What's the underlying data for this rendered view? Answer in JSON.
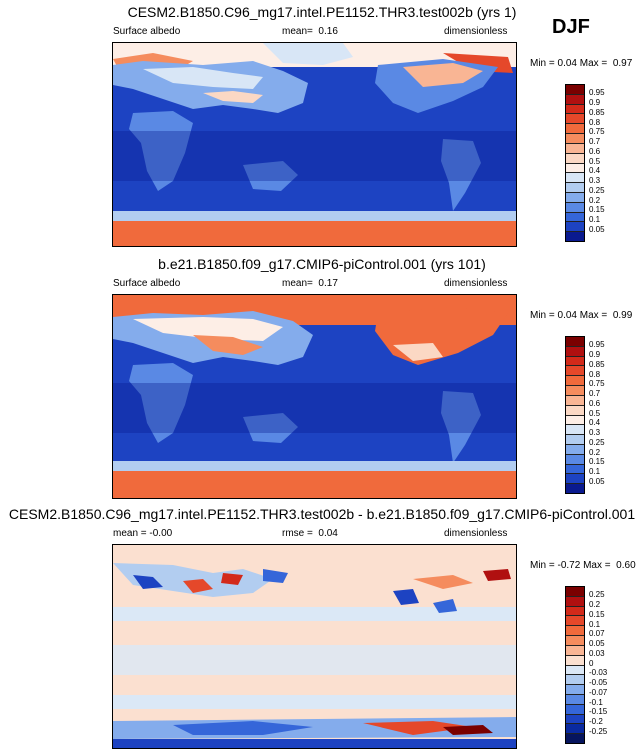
{
  "season": "DJF",
  "panels": [
    {
      "title": "CESM2.B1850.C96_mg17.intel.PE1152.THR3.test002b (yrs 1)",
      "left": "Surface albedo",
      "mid_label": "mean=",
      "mid_value": "0.16",
      "right": "dimensionless",
      "min_label": "Min =",
      "min_value": "0.04",
      "max_label": "Max =",
      "max_value": "0.97",
      "levels": [
        "0.95",
        "0.9",
        "0.85",
        "0.8",
        "0.75",
        "0.7",
        "0.6",
        "0.5",
        "0.4",
        "0.3",
        "0.25",
        "0.2",
        "0.15",
        "0.1",
        "0.05"
      ],
      "colors": [
        "#7a0000",
        "#b01010",
        "#d32a1a",
        "#e5482a",
        "#f06a3c",
        "#f58c5e",
        "#f9b594",
        "#fbd8c4",
        "#fdeee6",
        "#d8e6f6",
        "#b2cdf0",
        "#84acec",
        "#5a89e4",
        "#3566d9",
        "#1d43c2",
        "#0a1a8f"
      ]
    },
    {
      "title": "b.e21.B1850.f09_g17.CMIP6-piControl.001 (yrs 101)",
      "left": "Surface albedo",
      "mid_label": "mean=",
      "mid_value": "0.17",
      "right": "dimensionless",
      "min_label": "Min =",
      "min_value": "0.04",
      "max_label": "Max =",
      "max_value": "0.99",
      "levels": [
        "0.95",
        "0.9",
        "0.85",
        "0.8",
        "0.75",
        "0.7",
        "0.6",
        "0.5",
        "0.4",
        "0.3",
        "0.25",
        "0.2",
        "0.15",
        "0.1",
        "0.05"
      ],
      "colors": [
        "#7a0000",
        "#b01010",
        "#d32a1a",
        "#e5482a",
        "#f06a3c",
        "#f58c5e",
        "#f9b594",
        "#fbd8c4",
        "#fdeee6",
        "#d8e6f6",
        "#b2cdf0",
        "#84acec",
        "#5a89e4",
        "#3566d9",
        "#1d43c2",
        "#0a1a8f"
      ]
    },
    {
      "title": "CESM2.B1850.C96_mg17.intel.PE1152.THR3.test002b - b.e21.B1850.f09_g17.CMIP6-piControl.001",
      "left": "mean = -0.00",
      "mid_label": "rmse =",
      "mid_value": "0.04",
      "right": "dimensionless",
      "min_label": "Min =",
      "min_value": "-0.72",
      "max_label": "Max =",
      "max_value": "0.60",
      "levels": [
        "0.25",
        "0.2",
        "0.15",
        "0.1",
        "0.07",
        "0.05",
        "0.03",
        "0",
        "-0.03",
        "-0.05",
        "-0.07",
        "-0.1",
        "-0.15",
        "-0.2",
        "-0.25"
      ],
      "colors": [
        "#7a0000",
        "#b01010",
        "#d32a1a",
        "#e5482a",
        "#f06a3c",
        "#f58c5e",
        "#f9b594",
        "#fbe0d0",
        "#dbe8f6",
        "#b2cdf0",
        "#84acec",
        "#5a89e4",
        "#3566d9",
        "#1d43c2",
        "#0a2aa0",
        "#06155e"
      ]
    }
  ]
}
